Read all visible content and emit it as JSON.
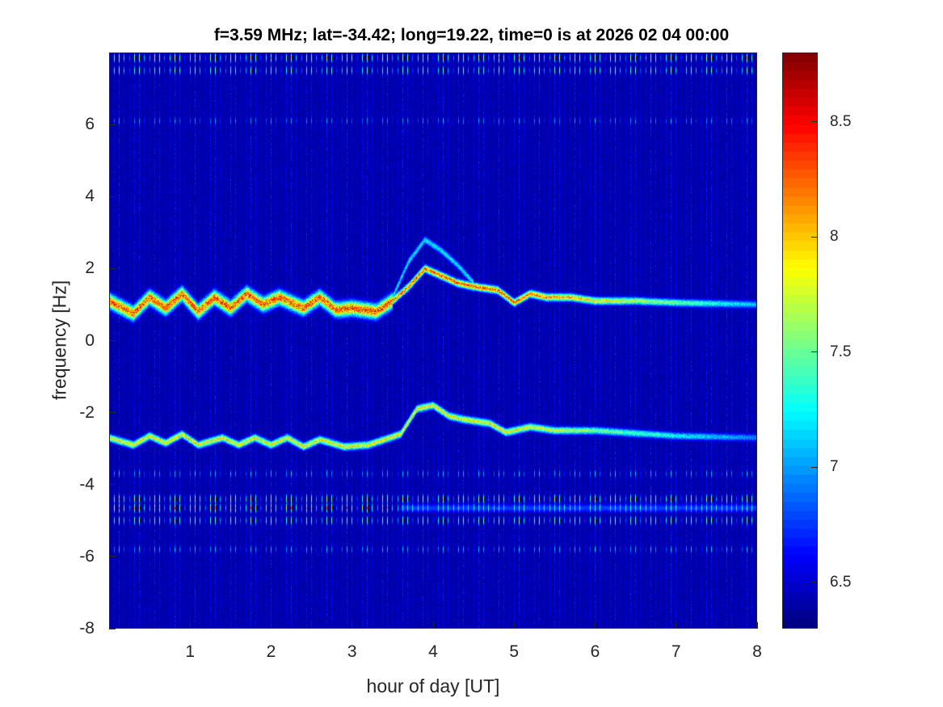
{
  "chart_data": {
    "type": "heatmap",
    "title": "f=3.59 MHz;  lat=-34.42; long=19.22, time=0 is at 2026 02 04 00:00",
    "xlabel": "hour of day [UT]",
    "ylabel": "frequency [Hz]",
    "xlim": [
      0,
      8
    ],
    "ylim": [
      -8,
      8
    ],
    "xticks": [
      "1",
      "2",
      "3",
      "4",
      "5",
      "6",
      "7",
      "8"
    ],
    "yticks": [
      "-8",
      "-6",
      "-4",
      "-2",
      "0",
      "2",
      "4",
      "6"
    ],
    "colormap": "jet",
    "clim": [
      6.3,
      8.8
    ],
    "colorbar_ticks": [
      "6.5",
      "7",
      "7.5",
      "8",
      "8.5"
    ],
    "background_level": 6.35,
    "ridges": [
      {
        "points": [
          [
            0,
            1.1
          ],
          [
            0.3,
            0.75
          ],
          [
            0.5,
            1.2
          ],
          [
            0.7,
            0.9
          ],
          [
            0.9,
            1.3
          ],
          [
            1.1,
            0.8
          ],
          [
            1.3,
            1.2
          ],
          [
            1.5,
            0.9
          ],
          [
            1.7,
            1.3
          ],
          [
            1.9,
            1.0
          ],
          [
            2.1,
            1.2
          ],
          [
            2.4,
            0.9
          ],
          [
            2.6,
            1.2
          ],
          [
            2.8,
            0.85
          ],
          [
            3.0,
            0.9
          ],
          [
            3.3,
            0.8
          ],
          [
            3.5,
            1.1
          ],
          [
            3.7,
            1.5
          ],
          [
            3.9,
            2.0
          ],
          [
            4.1,
            1.8
          ],
          [
            4.3,
            1.6
          ],
          [
            4.5,
            1.5
          ],
          [
            4.8,
            1.4
          ],
          [
            5.0,
            1.05
          ],
          [
            5.2,
            1.3
          ],
          [
            5.4,
            1.2
          ],
          [
            5.7,
            1.2
          ],
          [
            6.0,
            1.1
          ],
          [
            6.5,
            1.1
          ],
          [
            7.0,
            1.05
          ],
          [
            8.0,
            1.0
          ]
        ],
        "peak": 8.7
      },
      {
        "points": [
          [
            3.5,
            1.2
          ],
          [
            3.7,
            2.2
          ],
          [
            3.9,
            2.8
          ],
          [
            4.1,
            2.5
          ],
          [
            4.3,
            2.1
          ],
          [
            4.5,
            1.6
          ]
        ],
        "peak": 7.4
      },
      {
        "points": [
          [
            0,
            -2.7
          ],
          [
            0.3,
            -2.9
          ],
          [
            0.5,
            -2.65
          ],
          [
            0.7,
            -2.85
          ],
          [
            0.9,
            -2.6
          ],
          [
            1.1,
            -2.9
          ],
          [
            1.4,
            -2.7
          ],
          [
            1.6,
            -2.9
          ],
          [
            1.8,
            -2.7
          ],
          [
            2.0,
            -2.9
          ],
          [
            2.2,
            -2.7
          ],
          [
            2.4,
            -2.95
          ],
          [
            2.6,
            -2.75
          ],
          [
            2.9,
            -2.95
          ],
          [
            3.2,
            -2.9
          ],
          [
            3.4,
            -2.75
          ],
          [
            3.6,
            -2.6
          ],
          [
            3.8,
            -1.9
          ],
          [
            4.0,
            -1.8
          ],
          [
            4.2,
            -2.1
          ],
          [
            4.4,
            -2.2
          ],
          [
            4.7,
            -2.3
          ],
          [
            4.9,
            -2.55
          ],
          [
            5.2,
            -2.4
          ],
          [
            5.5,
            -2.5
          ],
          [
            6.0,
            -2.5
          ],
          [
            7.0,
            -2.65
          ],
          [
            8.0,
            -2.7
          ]
        ],
        "peak": 8.2
      }
    ],
    "interference_bands": [
      {
        "freq": 7.85,
        "peak": 8.3
      },
      {
        "freq": 7.5,
        "peak": 7.9
      },
      {
        "freq": 6.1,
        "peak": 7.2
      },
      {
        "freq": -3.7,
        "peak": 7.3
      },
      {
        "freq": -4.4,
        "peak": 8.2
      },
      {
        "freq": -4.65,
        "peak": 8.6
      },
      {
        "freq": -5.0,
        "peak": 8.0
      },
      {
        "freq": -5.8,
        "peak": 7.3
      }
    ]
  }
}
